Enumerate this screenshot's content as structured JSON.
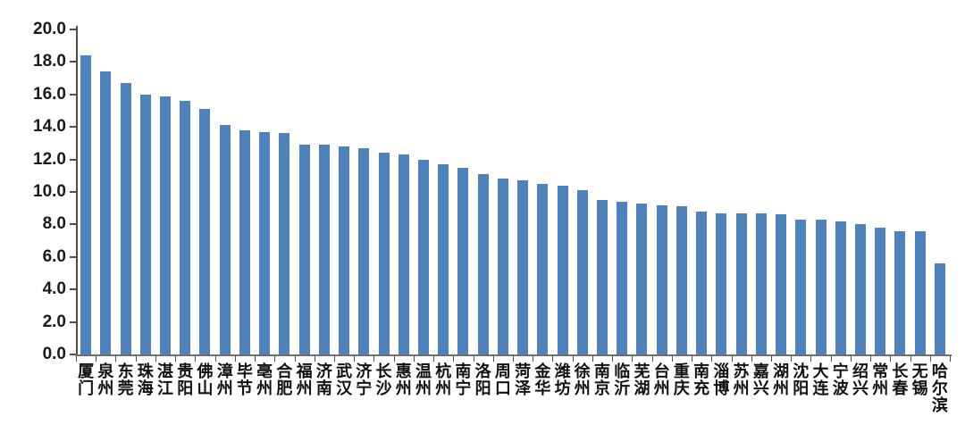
{
  "chart_data": {
    "type": "bar",
    "categories": [
      "厦门",
      "泉州",
      "东莞",
      "珠海",
      "湛江",
      "贵阳",
      "佛山",
      "漳州",
      "毕节",
      "亳州",
      "合肥",
      "福州",
      "济南",
      "武汉",
      "济宁",
      "长沙",
      "惠州",
      "温州",
      "杭州",
      "南宁",
      "洛阳",
      "周口",
      "菏泽",
      "金华",
      "潍坊",
      "徐州",
      "南京",
      "临沂",
      "芜湖",
      "台州",
      "重庆",
      "南充",
      "淄博",
      "苏州",
      "嘉兴",
      "湖州",
      "沈阳",
      "大连",
      "宁波",
      "绍兴",
      "常州",
      "长春",
      "无锡",
      "哈尔滨"
    ],
    "values": [
      18.4,
      17.4,
      16.7,
      16.0,
      15.9,
      15.6,
      15.1,
      14.1,
      13.8,
      13.7,
      13.6,
      12.9,
      12.9,
      12.8,
      12.7,
      12.4,
      12.3,
      12.0,
      11.7,
      11.5,
      11.1,
      10.8,
      10.7,
      10.5,
      10.4,
      10.1,
      9.5,
      9.4,
      9.3,
      9.2,
      9.1,
      8.8,
      8.7,
      8.7,
      8.7,
      8.6,
      8.3,
      8.3,
      8.2,
      8.0,
      7.8,
      7.6,
      7.6,
      5.6
    ],
    "ylim": [
      0,
      20
    ],
    "ytick_step": 2,
    "ytick_labels": [
      "0.0",
      "2.0",
      "4.0",
      "6.0",
      "8.0",
      "10.0",
      "12.0",
      "14.0",
      "16.0",
      "18.0",
      "20.0"
    ],
    "bar_color": "#4f81bd",
    "axis_color": "#4d4d4d",
    "label_color": "#111111",
    "grid": "off",
    "legend": "none"
  }
}
